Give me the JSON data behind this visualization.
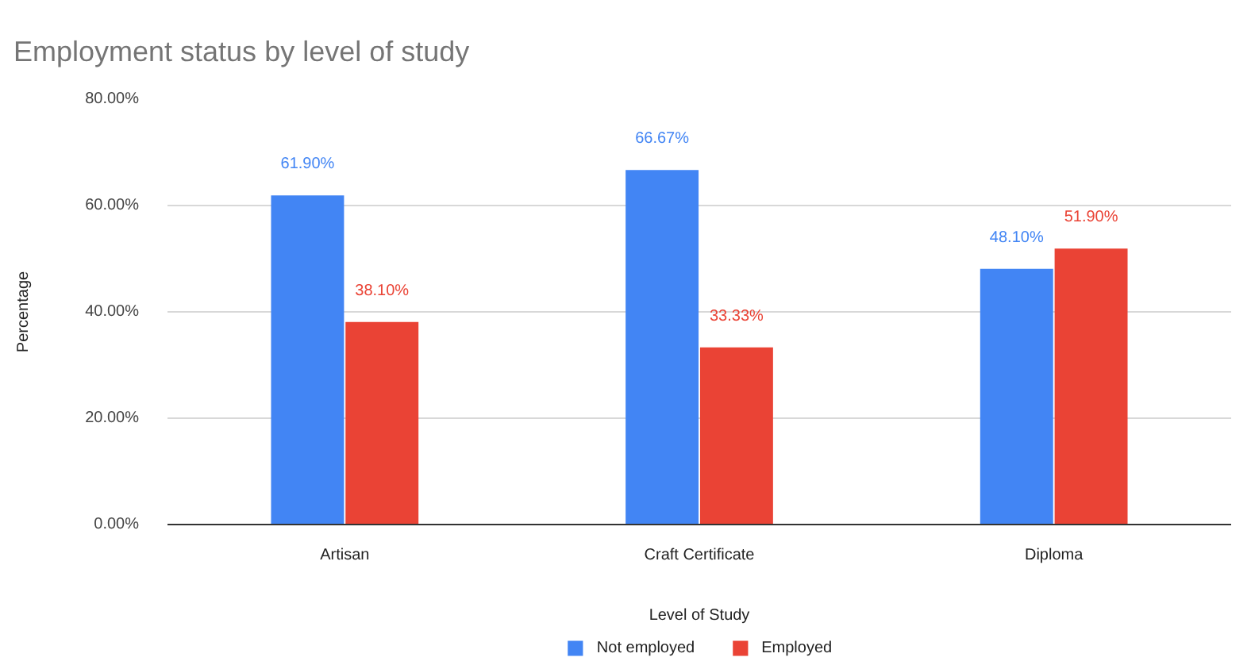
{
  "chart_data": {
    "type": "bar",
    "title": "Employment status by level of study",
    "xlabel": "Level of Study",
    "ylabel": "Percentage",
    "categories": [
      "Artisan",
      "Craft Certificate",
      "Diploma"
    ],
    "series": [
      {
        "name": "Not employed",
        "color": "#4285f4",
        "values": [
          61.9,
          66.67,
          48.1
        ],
        "value_labels": [
          "61.90%",
          "66.67%",
          "48.10%"
        ]
      },
      {
        "name": "Employed",
        "color": "#ea4335",
        "values": [
          38.1,
          33.33,
          51.9
        ],
        "value_labels": [
          "38.10%",
          "33.33%",
          "51.90%"
        ]
      }
    ],
    "ylim": [
      0,
      80
    ],
    "yticks": [
      {
        "value": 0,
        "label": "0.00%"
      },
      {
        "value": 20,
        "label": "20.00%"
      },
      {
        "value": 40,
        "label": "40.00%"
      },
      {
        "value": 60,
        "label": "60.00%"
      },
      {
        "value": 80,
        "label": "80.00%"
      }
    ],
    "grid": "y",
    "legend": "bottom"
  }
}
